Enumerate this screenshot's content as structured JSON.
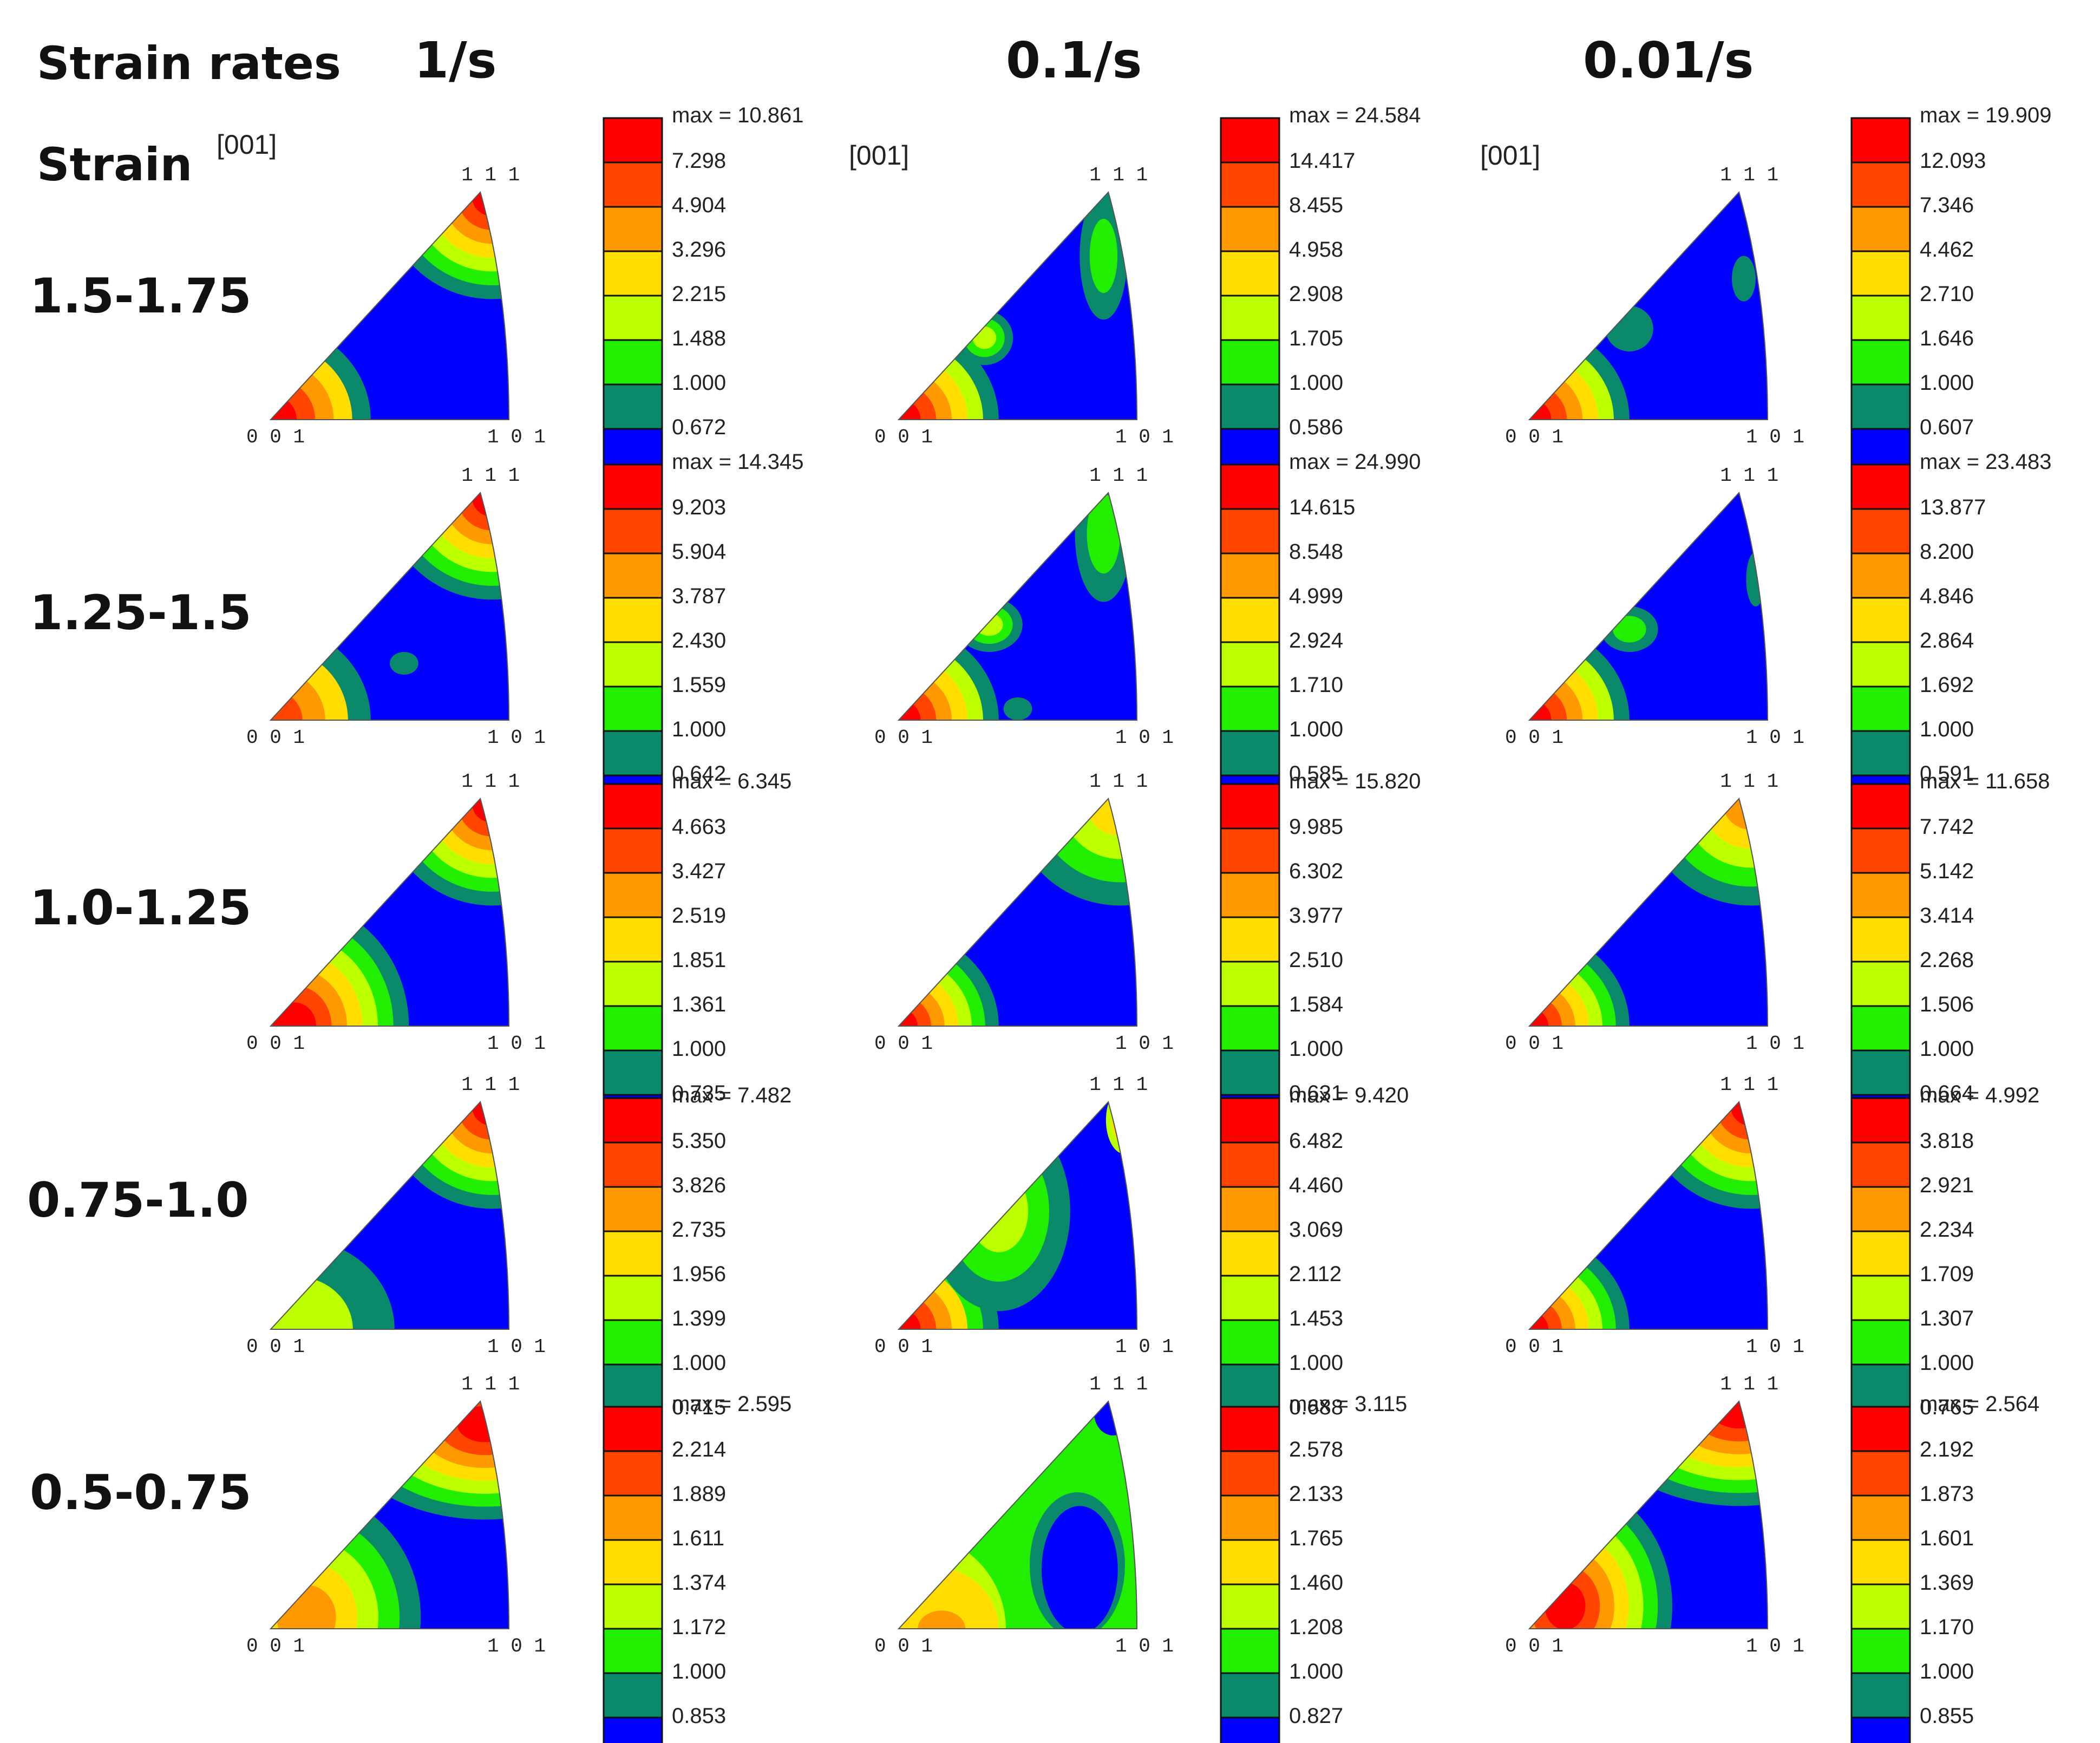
{
  "header": {
    "strain_rates_label": "Strain rates",
    "strain_label": "Strain",
    "rates": [
      "1/s",
      "0.1/s",
      "0.01/s"
    ]
  },
  "pole_label": "[001]",
  "vertex_labels": {
    "top": "1 1 1",
    "left": "0 0 1",
    "right": "1 0 1"
  },
  "strain_ranges": [
    "1.5-1.75",
    "1.25-1.5",
    "1.0-1.25",
    "0.75-1.0",
    "0.5-0.75"
  ],
  "level_colors": [
    "#ff0000",
    "#ff4500",
    "#ff9900",
    "#ffdd00",
    "#bbff00",
    "#22ee00",
    "#0a8a6a",
    "#0000ff"
  ],
  "colorbars": [
    [
      "max = 10.861",
      "7.298",
      "4.904",
      "3.296",
      "2.215",
      "1.488",
      "1.000",
      "0.672"
    ],
    [
      "max = 24.584",
      "14.417",
      "8.455",
      "4.958",
      "2.908",
      "1.705",
      "1.000",
      "0.586"
    ],
    [
      "max = 19.909",
      "12.093",
      "7.346",
      "4.462",
      "2.710",
      "1.646",
      "1.000",
      "0.607"
    ],
    [
      "max = 14.345",
      "9.203",
      "5.904",
      "3.787",
      "2.430",
      "1.559",
      "1.000",
      "0.642"
    ],
    [
      "max = 24.990",
      "14.615",
      "8.548",
      "4.999",
      "2.924",
      "1.710",
      "1.000",
      "0.585"
    ],
    [
      "max = 23.483",
      "13.877",
      "8.200",
      "4.846",
      "2.864",
      "1.692",
      "1.000",
      "0.591"
    ],
    [
      "max = 6.345",
      "4.663",
      "3.427",
      "2.519",
      "1.851",
      "1.361",
      "1.000",
      "0.735"
    ],
    [
      "max = 15.820",
      "9.985",
      "6.302",
      "3.977",
      "2.510",
      "1.584",
      "1.000",
      "0.631"
    ],
    [
      "max = 11.658",
      "7.742",
      "5.142",
      "3.414",
      "2.268",
      "1.506",
      "1.000",
      "0.664"
    ],
    [
      "max = 7.482",
      "5.350",
      "3.826",
      "2.735",
      "1.956",
      "1.399",
      "1.000",
      "0.715"
    ],
    [
      "max = 9.420",
      "6.482",
      "4.460",
      "3.069",
      "2.112",
      "1.453",
      "1.000",
      "0.688"
    ],
    [
      "max = 4.992",
      "3.818",
      "2.921",
      "2.234",
      "1.709",
      "1.307",
      "1.000",
      "0.765"
    ],
    [
      "max = 2.595",
      "2.214",
      "1.889",
      "1.611",
      "1.374",
      "1.172",
      "1.000",
      "0.853"
    ],
    [
      "max = 3.115",
      "2.578",
      "2.133",
      "1.765",
      "1.460",
      "1.208",
      "1.000",
      "0.827"
    ],
    [
      "max = 2.564",
      "2.192",
      "1.873",
      "1.601",
      "1.369",
      "1.170",
      "1.000",
      "0.855"
    ]
  ]
}
